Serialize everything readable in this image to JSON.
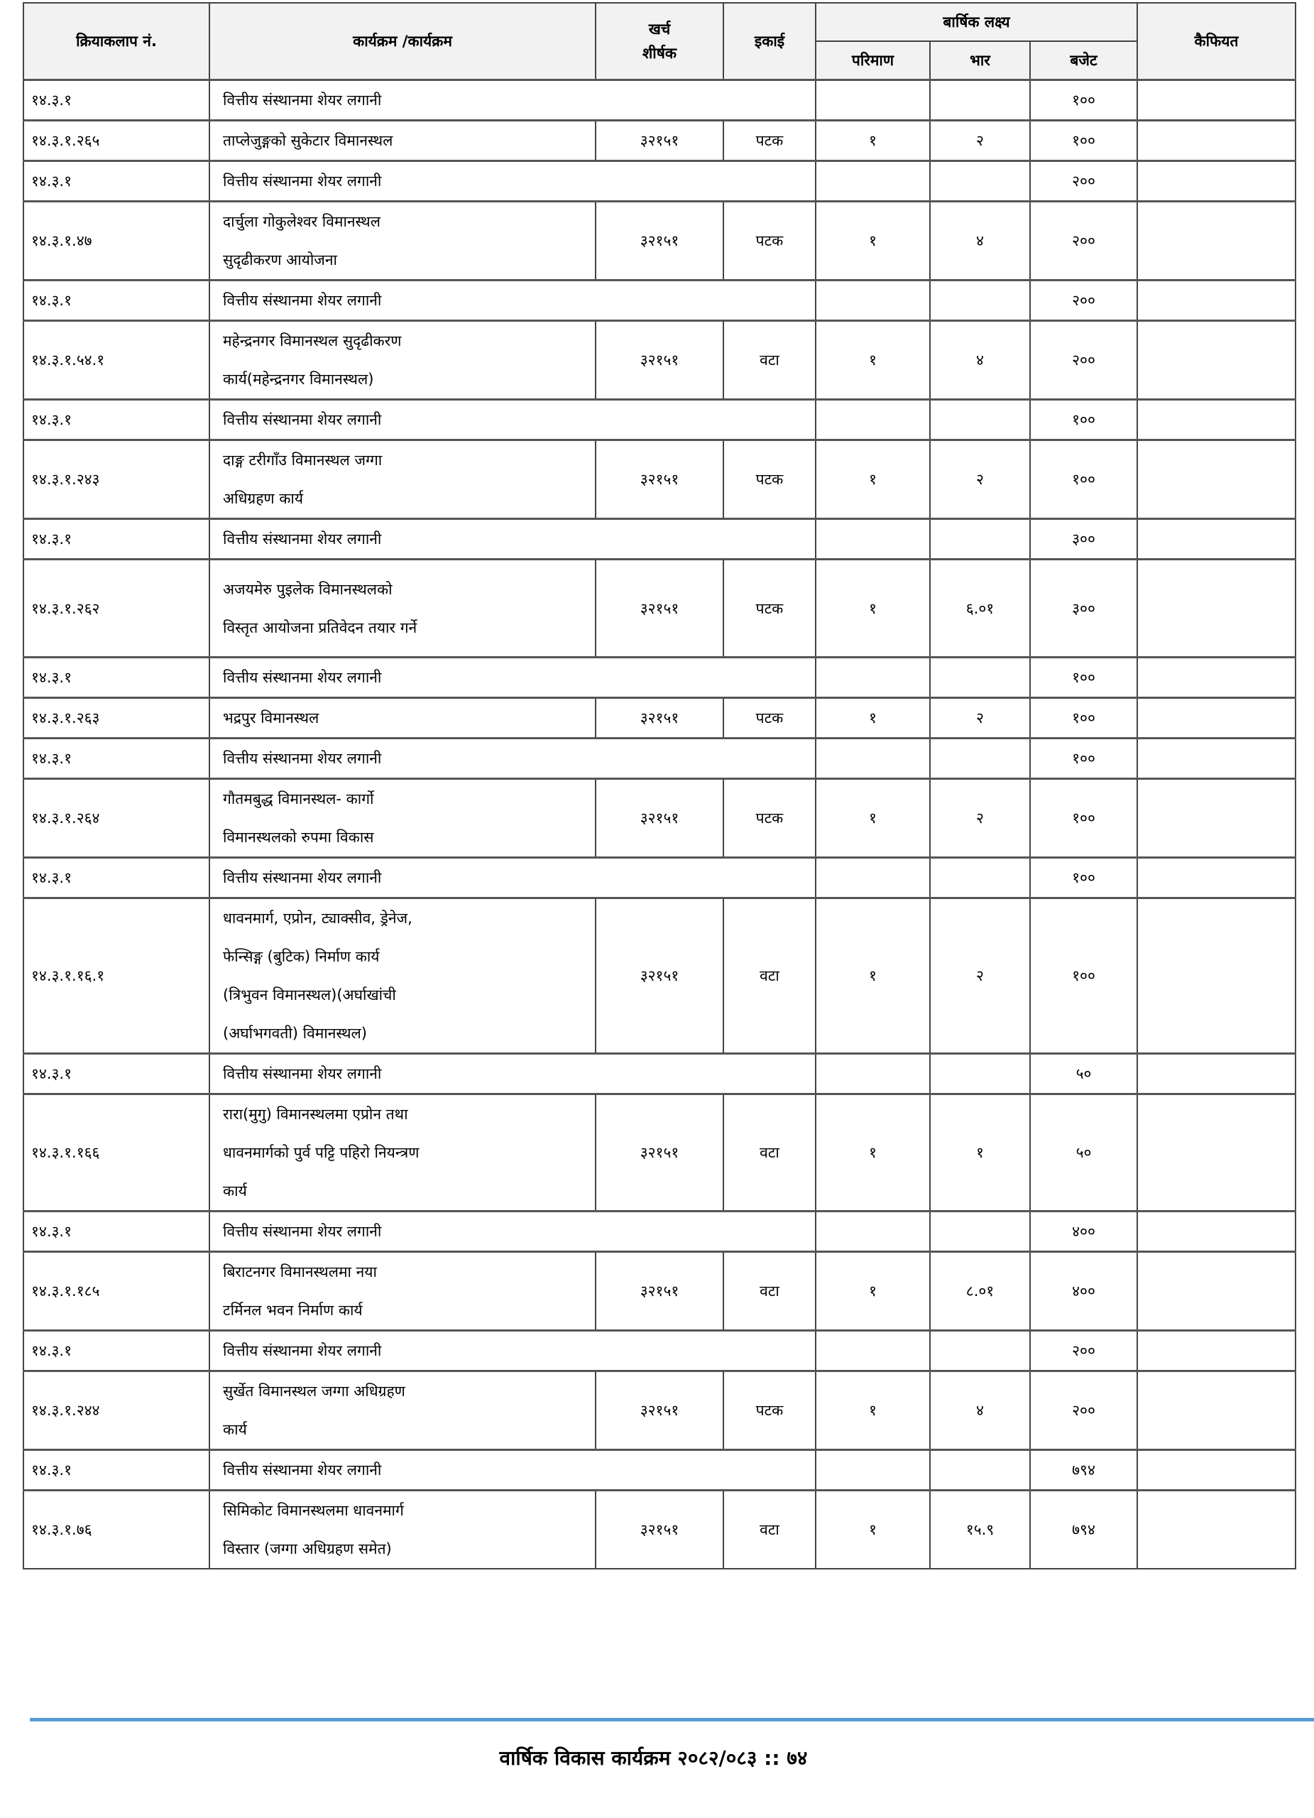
{
  "header": {
    "activity_no": "क्रियाकलाप नं.",
    "program": "कार्यक्रम /कार्यक्रम",
    "expense_head": "खर्च\nशीर्षक",
    "unit": "इकाई",
    "annual_target": "बार्षिक लक्ष्य",
    "quantity": "परिमाण",
    "weight": "भार",
    "budget": "बजेट",
    "remarks": "कैफियत"
  },
  "rows": [
    {
      "type": "share",
      "id": "१४.३.१",
      "program": "वित्तीय संस्थानमा शेयर लगानी",
      "budget": "१००"
    },
    {
      "type": "item",
      "id": "१४.३.१.२६५",
      "program": "ताप्लेजुङ्गको सुकेटार विमानस्थल",
      "head": "३२१५१",
      "unit": "पटक",
      "qty": "१",
      "weight": "२",
      "budget": "१००"
    },
    {
      "type": "share",
      "id": "१४.३.१",
      "program": "वित्तीय संस्थानमा शेयर लगानी",
      "budget": "२००"
    },
    {
      "type": "item",
      "id": "१४.३.१.४७",
      "program": "दार्चुला गोकुलेश्वर विमानस्थल\nसुदृढीकरण आयोजना",
      "head": "३२१५१",
      "unit": "पटक",
      "qty": "१",
      "weight": "४",
      "budget": "२००"
    },
    {
      "type": "share",
      "id": "१४.३.१",
      "program": "वित्तीय संस्थानमा शेयर लगानी",
      "budget": "२००"
    },
    {
      "type": "item",
      "id": "१४.३.१.५४.१",
      "program": "महेन्द्रनगर विमानस्थल सुदृढीकरण\nकार्य(महेन्द्रनगर विमानस्थल)",
      "head": "३२१५१",
      "unit": "वटा",
      "qty": "१",
      "weight": "४",
      "budget": "२००"
    },
    {
      "type": "share",
      "id": "१४.३.१",
      "program": "वित्तीय संस्थानमा शेयर लगानी",
      "budget": "१००"
    },
    {
      "type": "item",
      "id": "१४.३.१.२४३",
      "program": "दाङ्ग टरीगाँउ विमानस्थल जग्गा\nअधिग्रहण कार्य",
      "head": "३२१५१",
      "unit": "पटक",
      "qty": "१",
      "weight": "२",
      "budget": "१००"
    },
    {
      "type": "share",
      "id": "१४.३.१",
      "program": "वित्तीय संस्थानमा शेयर लगानी",
      "budget": "३००"
    },
    {
      "type": "item",
      "id": "१४.३.१.२६२",
      "program": "अजयमेरु पुइलेक विमानस्थलको\nविस्तृत आयोजना प्रतिवेदन तयार गर्ने",
      "head": "३२१५१",
      "unit": "पटक",
      "qty": "१",
      "weight": "६.०१",
      "budget": "३००"
    },
    {
      "type": "share",
      "id": "१४.३.१",
      "program": "वित्तीय संस्थानमा शेयर लगानी",
      "budget": "१००"
    },
    {
      "type": "item",
      "id": "१४.३.१.२६३",
      "program": "भद्रपुर विमानस्थल",
      "head": "३२१५१",
      "unit": "पटक",
      "qty": "१",
      "weight": "२",
      "budget": "१००"
    },
    {
      "type": "share",
      "id": "१४.३.१",
      "program": "वित्तीय संस्थानमा शेयर लगानी",
      "budget": "१००"
    },
    {
      "type": "item",
      "id": "१४.३.१.२६४",
      "program": "गौतमबुद्ध विमानस्थल- कार्गो\nविमानस्थलको रुपमा विकास",
      "head": "३२१५१",
      "unit": "पटक",
      "qty": "१",
      "weight": "२",
      "budget": "१००"
    },
    {
      "type": "share",
      "id": "१४.३.१",
      "program": "वित्तीय संस्थानमा शेयर लगानी",
      "budget": "१००"
    },
    {
      "type": "item",
      "id": "१४.३.१.१६.१",
      "program": "धावनमार्ग, एप्रोन, ट्याक्सीव, ड्रेनेज,\nफेन्सिङ्ग (बुटिक) निर्माण कार्य\n(त्रिभुवन विमानस्थल)(अर्घाखांची\n(अर्घाभगवती) विमानस्थल)",
      "head": "३२१५१",
      "unit": "वटा",
      "qty": "१",
      "weight": "२",
      "budget": "१००"
    },
    {
      "type": "share",
      "id": "१४.३.१",
      "program": "वित्तीय संस्थानमा शेयर लगानी",
      "budget": "५०"
    },
    {
      "type": "item",
      "id": "१४.३.१.१६६",
      "program": "रारा(मुगु) विमानस्थलमा एप्रोन तथा\nधावनमार्गको पुर्व पट्टि पहिरो नियन्त्रण\nकार्य",
      "head": "३२१५१",
      "unit": "वटा",
      "qty": "१",
      "weight": "१",
      "budget": "५०"
    },
    {
      "type": "share",
      "id": "१४.३.१",
      "program": "वित्तीय संस्थानमा शेयर लगानी",
      "budget": "४००"
    },
    {
      "type": "item",
      "id": "१४.३.१.१८५",
      "program": "बिराटनगर विमानस्थलमा नया\nटर्मिनल भवन निर्माण कार्य",
      "head": "३२१५१",
      "unit": "वटा",
      "qty": "१",
      "weight": "८.०१",
      "budget": "४००"
    },
    {
      "type": "share",
      "id": "१४.३.१",
      "program": "वित्तीय संस्थानमा शेयर लगानी",
      "budget": "२००"
    },
    {
      "type": "item",
      "id": "१४.३.१.२४४",
      "program": "सुर्खेत विमानस्थल जग्गा अधिग्रहण\nकार्य",
      "head": "३२१५१",
      "unit": "पटक",
      "qty": "१",
      "weight": "४",
      "budget": "२००"
    },
    {
      "type": "share",
      "id": "१४.३.१",
      "program": "वित्तीय संस्थानमा शेयर लगानी",
      "budget": "७९४"
    },
    {
      "type": "item",
      "id": "१४.३.१.७६",
      "program": "सिमिकोट विमानस्थलमा धावनमार्ग\nविस्तार (जग्गा अधिग्रहण समेत)",
      "head": "३२१५१",
      "unit": "वटा",
      "qty": "१",
      "weight": "१५.९",
      "budget": "७९४"
    }
  ],
  "footer": {
    "text": "वार्षिक विकास कार्यक्रम २०८२/०८३ :: ७४",
    "rule_color": "#5b9bd5"
  }
}
